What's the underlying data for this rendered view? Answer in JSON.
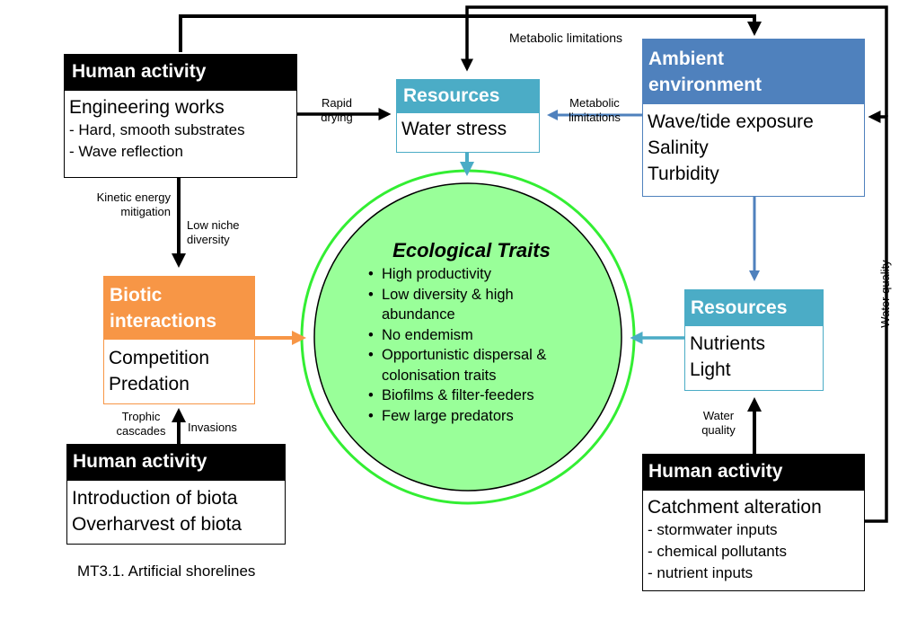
{
  "human_engineering": {
    "header": "Human activity",
    "title": "Engineering works",
    "items": [
      "- Hard, smooth substrates",
      "- Wave reflection"
    ]
  },
  "resources_water": {
    "header": "Resources",
    "item": "Water stress"
  },
  "ambient": {
    "header_line1": "Ambient",
    "header_line2": "environment",
    "items": [
      "Wave/tide exposure",
      "Salinity",
      "Turbidity"
    ]
  },
  "biotic": {
    "header_line1": "Biotic",
    "header_line2": "interactions",
    "items": [
      "Competition",
      "Predation"
    ]
  },
  "resources_nutrients": {
    "header": "Resources",
    "items": [
      "Nutrients",
      "Light"
    ]
  },
  "human_biota": {
    "header": "Human activity",
    "items": [
      "Introduction of biota",
      "Overharvest of biota"
    ]
  },
  "human_catchment": {
    "header": "Human activity",
    "title": "Catchment alteration",
    "items": [
      "- stormwater inputs",
      "- chemical pollutants",
      "- nutrient inputs"
    ]
  },
  "traits": {
    "title": "Ecological Traits",
    "items": [
      "High productivity",
      "Low diversity & high abundance",
      "No endemism",
      "Opportunistic dispersal & colonisation traits",
      "Biofilms & filter-feeders",
      "Few large predators"
    ]
  },
  "labels": {
    "metabolic_top": "Metabolic limitations",
    "rapid_drying_1": "Rapid",
    "rapid_drying_2": "drying",
    "metabolic_mid_1": "Metabolic",
    "metabolic_mid_2": "limitations",
    "kinetic_1": "Kinetic energy",
    "kinetic_2": "mitigation",
    "niche_1": "Low niche",
    "niche_2": "diversity",
    "trophic_1": "Trophic",
    "trophic_2": "cascades",
    "invasions": "Invasions",
    "water_quality_1": "Water",
    "water_quality_2": "quality",
    "water_quality_vertical": "Water quality"
  },
  "caption": "MT3.1. Artificial shorelines",
  "colors": {
    "human_header": "#000000",
    "resources_header": "#4BACC6",
    "ambient_header": "#4F81BD",
    "biotic_header": "#F79646",
    "traits_fill": "#99FF99",
    "traits_ring": "#33EE33",
    "arrow_black": "#000000",
    "arrow_blue": "#4F81BD",
    "arrow_cyan": "#4BACC6",
    "arrow_orange": "#F79646"
  }
}
